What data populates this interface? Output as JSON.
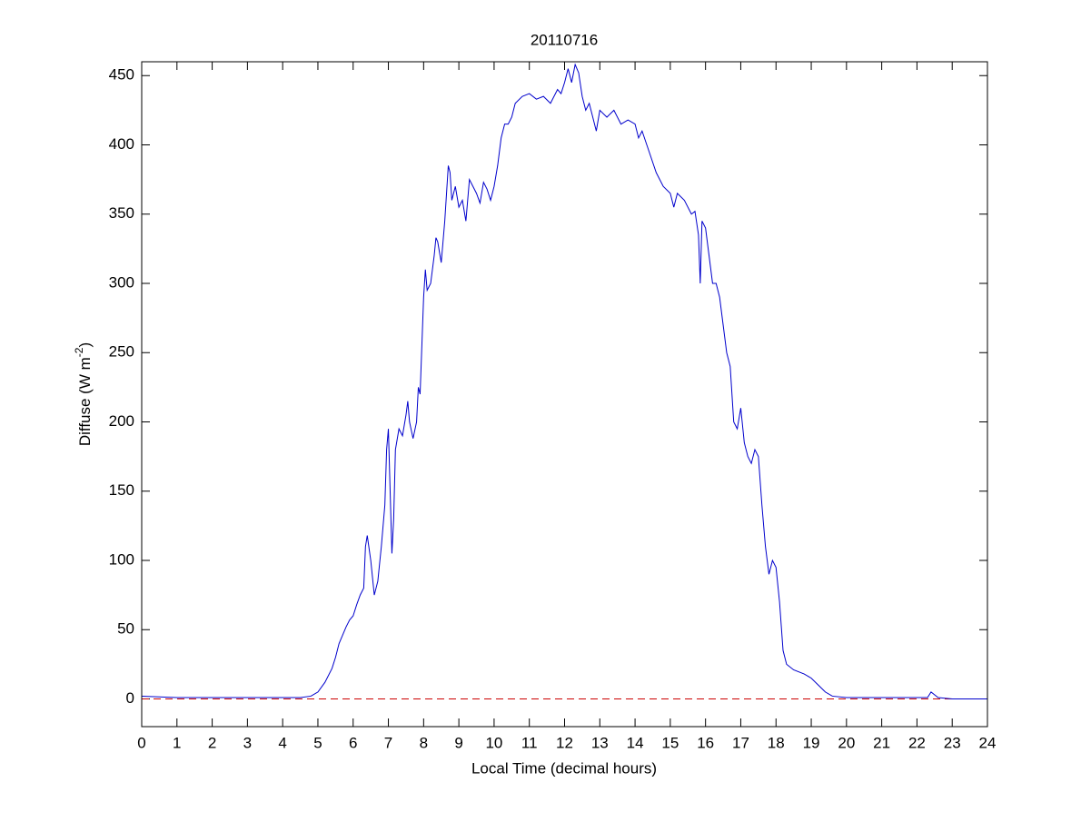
{
  "chart_data": {
    "type": "line",
    "title": "20110716",
    "xlabel": "Local Time (decimal hours)",
    "ylabel": {
      "text": "Diffuse (W m",
      "superscript": "-2",
      "suffix": ")"
    },
    "x": [
      0,
      1,
      2,
      3,
      4,
      4.5,
      4.8,
      5.0,
      5.2,
      5.4,
      5.5,
      5.6,
      5.8,
      5.9,
      6.0,
      6.1,
      6.2,
      6.3,
      6.35,
      6.4,
      6.5,
      6.6,
      6.7,
      6.8,
      6.9,
      6.95,
      7.0,
      7.05,
      7.1,
      7.15,
      7.2,
      7.3,
      7.4,
      7.5,
      7.55,
      7.6,
      7.7,
      7.8,
      7.85,
      7.9,
      8.0,
      8.05,
      8.1,
      8.2,
      8.3,
      8.35,
      8.4,
      8.5,
      8.6,
      8.7,
      8.75,
      8.8,
      8.9,
      9.0,
      9.1,
      9.2,
      9.3,
      9.4,
      9.5,
      9.6,
      9.7,
      9.8,
      9.9,
      10.0,
      10.1,
      10.2,
      10.3,
      10.4,
      10.5,
      10.6,
      10.8,
      11.0,
      11.2,
      11.4,
      11.6,
      11.8,
      11.9,
      12.0,
      12.1,
      12.2,
      12.3,
      12.4,
      12.5,
      12.6,
      12.7,
      12.8,
      12.9,
      13.0,
      13.2,
      13.4,
      13.6,
      13.8,
      14.0,
      14.1,
      14.2,
      14.4,
      14.6,
      14.8,
      15.0,
      15.1,
      15.2,
      15.4,
      15.6,
      15.7,
      15.8,
      15.85,
      15.9,
      16.0,
      16.1,
      16.2,
      16.3,
      16.4,
      16.5,
      16.6,
      16.7,
      16.8,
      16.9,
      17.0,
      17.1,
      17.2,
      17.3,
      17.4,
      17.5,
      17.6,
      17.7,
      17.8,
      17.9,
      18.0,
      18.1,
      18.2,
      18.3,
      18.5,
      18.8,
      19.0,
      19.2,
      19.4,
      19.6,
      20.0,
      21,
      22,
      22.3,
      22.4,
      22.6,
      23,
      24
    ],
    "values": [
      2,
      1,
      1,
      1,
      1,
      1,
      2,
      5,
      12,
      22,
      30,
      40,
      52,
      57,
      60,
      68,
      75,
      80,
      110,
      118,
      100,
      75,
      85,
      110,
      140,
      180,
      195,
      150,
      105,
      130,
      180,
      195,
      190,
      205,
      215,
      200,
      188,
      200,
      225,
      220,
      290,
      310,
      295,
      300,
      320,
      333,
      330,
      315,
      345,
      385,
      380,
      360,
      370,
      355,
      360,
      345,
      375,
      370,
      365,
      358,
      373,
      368,
      360,
      370,
      385,
      405,
      415,
      415,
      420,
      430,
      435,
      437,
      433,
      435,
      430,
      440,
      437,
      445,
      455,
      445,
      458,
      452,
      435,
      425,
      430,
      420,
      410,
      425,
      420,
      425,
      415,
      418,
      415,
      405,
      410,
      395,
      380,
      370,
      365,
      355,
      365,
      360,
      350,
      352,
      335,
      300,
      345,
      340,
      320,
      300,
      300,
      290,
      270,
      250,
      240,
      200,
      195,
      210,
      185,
      175,
      170,
      180,
      175,
      140,
      110,
      90,
      100,
      95,
      70,
      35,
      25,
      21,
      18,
      15,
      10,
      5,
      2,
      1,
      1,
      1,
      1,
      5,
      1,
      0,
      0
    ],
    "color": "#0000cc",
    "reference_line": {
      "value": 0,
      "color": "#cc0000",
      "style": "dashed"
    },
    "xlim": [
      0,
      24
    ],
    "xticks": [
      0,
      1,
      2,
      3,
      4,
      5,
      6,
      7,
      8,
      9,
      10,
      11,
      12,
      13,
      14,
      15,
      16,
      17,
      18,
      19,
      20,
      21,
      22,
      23,
      24
    ],
    "ylim": [
      -20,
      460
    ],
    "yticks": [
      0,
      50,
      100,
      150,
      200,
      250,
      300,
      350,
      400,
      450
    ]
  }
}
